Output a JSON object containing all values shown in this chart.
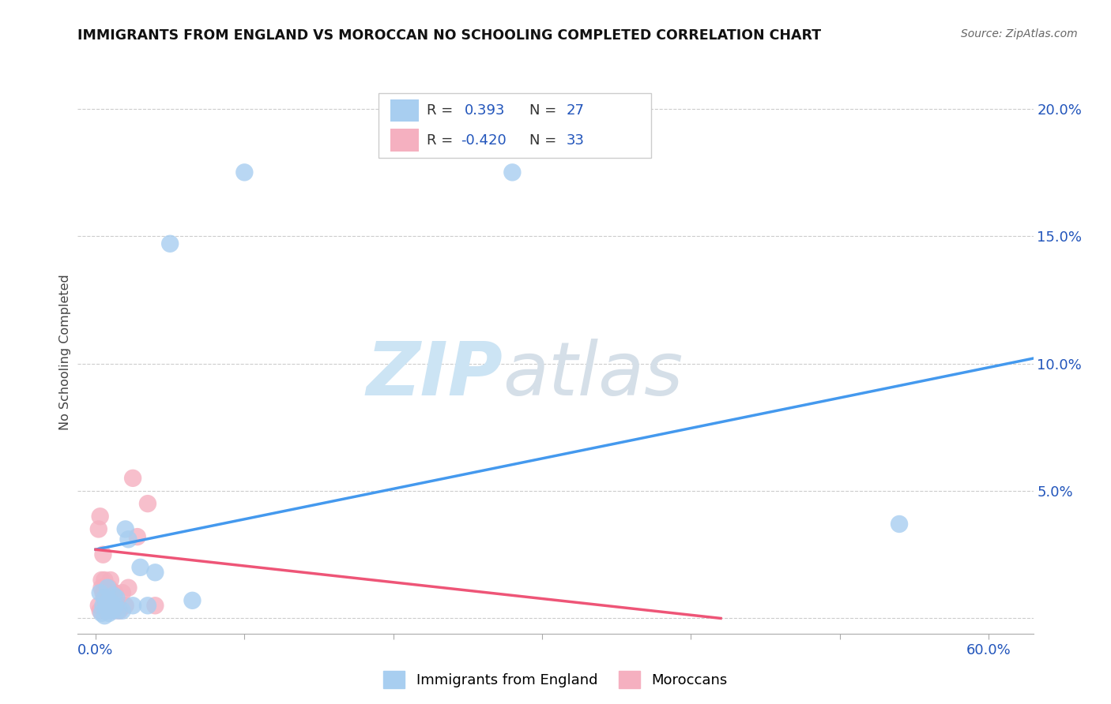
{
  "title": "IMMIGRANTS FROM ENGLAND VS MOROCCAN NO SCHOOLING COMPLETED CORRELATION CHART",
  "source": "Source: ZipAtlas.com",
  "ylabel": "No Schooling Completed",
  "xlim": [
    -0.012,
    0.63
  ],
  "ylim": [
    -0.006,
    0.215
  ],
  "x_ticks": [
    0.0,
    0.1,
    0.2,
    0.3,
    0.4,
    0.5,
    0.6
  ],
  "x_tick_labels": [
    "0.0%",
    "",
    "",
    "",
    "",
    "",
    "60.0%"
  ],
  "y_ticks": [
    0.0,
    0.05,
    0.1,
    0.15,
    0.2
  ],
  "y_tick_labels_right": [
    "",
    "5.0%",
    "10.0%",
    "15.0%",
    "20.0%"
  ],
  "blue_R": "0.393",
  "blue_N": "27",
  "pink_R": "-0.420",
  "pink_N": "33",
  "blue_scatter_color": "#a8cef0",
  "pink_scatter_color": "#f5b0c0",
  "blue_line_color": "#4499ee",
  "pink_line_color": "#ee5577",
  "tick_label_color": "#2255bb",
  "legend_blue_label": "Immigrants from England",
  "legend_pink_label": "Moroccans",
  "blue_points_x": [
    0.003,
    0.005,
    0.006,
    0.007,
    0.008,
    0.009,
    0.01,
    0.011,
    0.012,
    0.013,
    0.014,
    0.015,
    0.018,
    0.02,
    0.022,
    0.025,
    0.03,
    0.035,
    0.04,
    0.05,
    0.065,
    0.1,
    0.28,
    0.54,
    0.004,
    0.006,
    0.009
  ],
  "blue_points_y": [
    0.01,
    0.005,
    0.008,
    0.005,
    0.012,
    0.007,
    0.006,
    0.003,
    0.009,
    0.005,
    0.008,
    0.003,
    0.003,
    0.035,
    0.031,
    0.005,
    0.02,
    0.005,
    0.018,
    0.147,
    0.007,
    0.175,
    0.175,
    0.037,
    0.002,
    0.001,
    0.002
  ],
  "pink_points_x": [
    0.002,
    0.003,
    0.004,
    0.004,
    0.005,
    0.005,
    0.006,
    0.006,
    0.007,
    0.007,
    0.008,
    0.008,
    0.009,
    0.009,
    0.01,
    0.01,
    0.011,
    0.011,
    0.012,
    0.012,
    0.013,
    0.014,
    0.015,
    0.016,
    0.018,
    0.02,
    0.022,
    0.025,
    0.028,
    0.035,
    0.04,
    0.002,
    0.003
  ],
  "pink_points_y": [
    0.035,
    0.04,
    0.015,
    0.012,
    0.025,
    0.01,
    0.015,
    0.008,
    0.005,
    0.003,
    0.01,
    0.005,
    0.003,
    0.012,
    0.015,
    0.008,
    0.005,
    0.003,
    0.008,
    0.003,
    0.01,
    0.005,
    0.005,
    0.003,
    0.01,
    0.005,
    0.012,
    0.055,
    0.032,
    0.045,
    0.005,
    0.005,
    0.003
  ],
  "blue_trend_x": [
    0.0,
    0.63
  ],
  "blue_trend_y": [
    0.027,
    0.102
  ],
  "pink_trend_x": [
    0.0,
    0.42
  ],
  "pink_trend_y": [
    0.027,
    0.0
  ]
}
